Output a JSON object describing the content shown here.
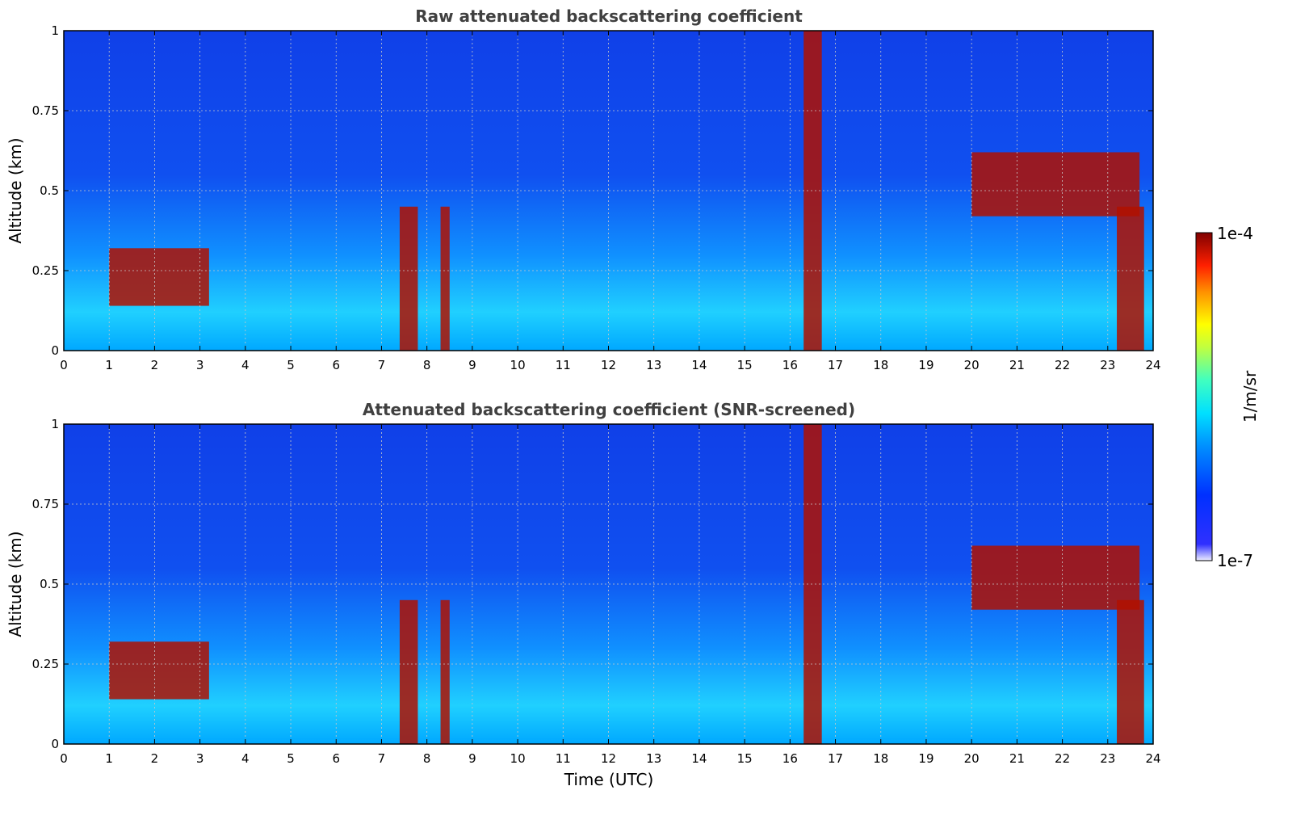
{
  "chart_data": [
    {
      "type": "heatmap",
      "title": "Raw attenuated backscattering coefficient",
      "xlabel": "",
      "ylabel": "Altitude (km)",
      "xlim": [
        0,
        24
      ],
      "ylim": [
        0,
        1
      ],
      "xticks": [
        "0",
        "1",
        "2",
        "3",
        "4",
        "5",
        "6",
        "7",
        "8",
        "9",
        "10",
        "11",
        "12",
        "13",
        "14",
        "15",
        "16",
        "17",
        "18",
        "19",
        "20",
        "21",
        "22",
        "23",
        "24"
      ],
      "yticks": [
        "0",
        "0.25",
        "0.5",
        "0.75",
        "1"
      ],
      "grid": true,
      "color_scale": "log",
      "clim": [
        1e-07,
        0.0001
      ],
      "features": [
        {
          "x_start": 1.0,
          "x_end": 3.2,
          "altitude_top": 0.32,
          "altitude_bottom": 0.14,
          "level": "high"
        },
        {
          "x_start": 7.4,
          "x_end": 7.8,
          "altitude_top": 0.45,
          "altitude_bottom": 0.0,
          "level": "high"
        },
        {
          "x_start": 8.3,
          "x_end": 8.5,
          "altitude_top": 0.45,
          "altitude_bottom": 0.0,
          "level": "high"
        },
        {
          "x_start": 16.3,
          "x_end": 16.7,
          "altitude_top": 1.0,
          "altitude_bottom": 0.0,
          "level": "high"
        },
        {
          "x_start": 20.0,
          "x_end": 23.7,
          "altitude_top": 0.62,
          "altitude_bottom": 0.42,
          "level": "high"
        },
        {
          "x_start": 23.2,
          "x_end": 23.8,
          "altitude_top": 0.45,
          "altitude_bottom": 0.0,
          "level": "high"
        }
      ]
    },
    {
      "type": "heatmap",
      "title": "Attenuated backscattering coefficient (SNR-screened)",
      "xlabel": "Time (UTC)",
      "ylabel": "Altitude (km)",
      "xlim": [
        0,
        24
      ],
      "ylim": [
        0,
        1
      ],
      "xticks": [
        "0",
        "1",
        "2",
        "3",
        "4",
        "5",
        "6",
        "7",
        "8",
        "9",
        "10",
        "11",
        "12",
        "13",
        "14",
        "15",
        "16",
        "17",
        "18",
        "19",
        "20",
        "21",
        "22",
        "23",
        "24"
      ],
      "yticks": [
        "0",
        "0.25",
        "0.5",
        "0.75",
        "1"
      ],
      "grid": true,
      "color_scale": "log",
      "clim": [
        1e-07,
        0.0001
      ]
    }
  ],
  "colorbar": {
    "label": "1/m/sr",
    "max_label": "1e-4",
    "min_label": "1e-7",
    "colormap": "jet"
  }
}
